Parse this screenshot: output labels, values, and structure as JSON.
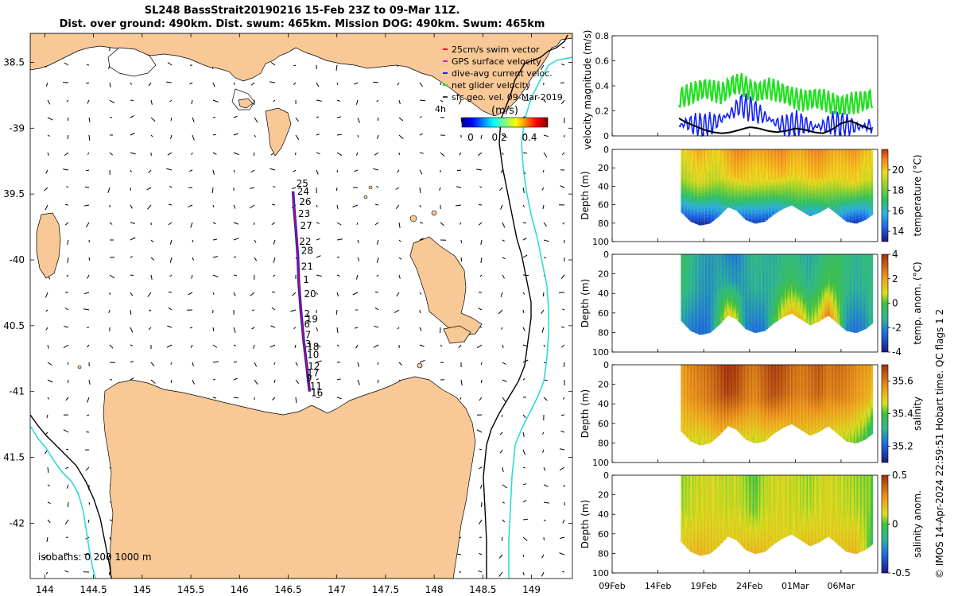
{
  "header": {
    "title_line1": "SL248 BassStrait20190216 15-Feb 23Z to 09-Mar 11Z.",
    "title_line2": "Dist. over ground: 490km. Dist. swum: 465km. Mission DOG: 490km. Swum: 465km"
  },
  "colors": {
    "land": "#f8c896",
    "track": "#1020ff",
    "swim_vector": "#ff0000",
    "gps_velocity": "#d020d0",
    "glider_velocity": "#20e020",
    "isobath_200": "#000000",
    "isobath_1000": "#30d8d8"
  },
  "chart_data": [
    {
      "type": "scatter",
      "title": "Glider track map",
      "xlim": [
        143.85,
        149.42
      ],
      "ylim": [
        -42.42,
        -38.28
      ],
      "xticks": [
        144,
        144.5,
        145,
        145.5,
        146,
        146.5,
        147,
        147.5,
        148,
        148.5,
        149
      ],
      "xtick_labels": [
        "144",
        "144.5",
        "145",
        "145.5",
        "146",
        "146.5",
        "147",
        "147.5",
        "148",
        "148.5",
        "149"
      ],
      "yticks": [
        -38.5,
        -39,
        -39.5,
        -40,
        -40.5,
        -41,
        -41.5,
        -42
      ],
      "ytick_labels": [
        "38.5",
        "-39",
        "39.5",
        "-40",
        "40.5",
        "-41",
        "41.5",
        "-42"
      ],
      "legend": {
        "entries": [
          "25cm/s swim vector",
          "GPS surface velocity",
          "dive-avg current veloc.",
          "net glider velocity",
          "sfc geo. vel. 09-Mar-2019"
        ],
        "position": "top-right",
        "time_label": "4h"
      },
      "colorbar": {
        "label": "(m/s)",
        "ticks": [
          "0",
          "0.2",
          "0.4"
        ],
        "range": [
          0,
          0.5
        ]
      },
      "isobaths_label": "isobaths: 0   200  1000 m",
      "track": [
        {
          "lon": 146.72,
          "lat": -41.0
        },
        {
          "lon": 146.69,
          "lat": -40.8
        },
        {
          "lon": 146.66,
          "lat": -40.62
        },
        {
          "lon": 146.63,
          "lat": -40.38
        },
        {
          "lon": 146.61,
          "lat": -40.18
        },
        {
          "lon": 146.6,
          "lat": -39.98
        },
        {
          "lon": 146.58,
          "lat": -39.78
        },
        {
          "lon": 146.56,
          "lat": -39.6
        },
        {
          "lon": 146.55,
          "lat": -39.48
        }
      ],
      "day_labels": [
        {
          "text": "25",
          "lon": 146.55,
          "lat": -39.42
        },
        {
          "text": "24",
          "lon": 146.56,
          "lat": -39.48
        },
        {
          "text": "26",
          "lon": 146.58,
          "lat": -39.56
        },
        {
          "text": "23",
          "lon": 146.57,
          "lat": -39.65
        },
        {
          "text": "27",
          "lon": 146.59,
          "lat": -39.74
        },
        {
          "text": "22",
          "lon": 146.58,
          "lat": -39.86
        },
        {
          "text": "28",
          "lon": 146.6,
          "lat": -39.93
        },
        {
          "text": "21",
          "lon": 146.6,
          "lat": -40.05
        },
        {
          "text": "1",
          "lon": 146.62,
          "lat": -40.15
        },
        {
          "text": "20",
          "lon": 146.63,
          "lat": -40.26
        },
        {
          "text": "2",
          "lon": 146.63,
          "lat": -40.41
        },
        {
          "text": "19",
          "lon": 146.65,
          "lat": -40.45
        },
        {
          "text": "6",
          "lon": 146.63,
          "lat": -40.49
        },
        {
          "text": "7",
          "lon": 146.64,
          "lat": -40.57
        },
        {
          "text": "3",
          "lon": 146.64,
          "lat": -40.64
        },
        {
          "text": "18",
          "lon": 146.66,
          "lat": -40.66
        },
        {
          "text": "10",
          "lon": 146.66,
          "lat": -40.72
        },
        {
          "text": "12",
          "lon": 146.67,
          "lat": -40.81
        },
        {
          "text": "17",
          "lon": 146.66,
          "lat": -40.86
        },
        {
          "text": "9",
          "lon": 146.65,
          "lat": -40.9
        },
        {
          "text": "11",
          "lon": 146.69,
          "lat": -40.96
        },
        {
          "text": "16",
          "lon": 146.7,
          "lat": -41.01
        }
      ]
    },
    {
      "type": "line",
      "ylabel": "velocity magnitude (m/s)",
      "ylim": [
        0,
        0.8
      ],
      "yticks": [
        0,
        0.2,
        0.4,
        0.6,
        0.8
      ],
      "ytick_labels": [
        "0",
        "0.2",
        "0.4",
        "0.6",
        "0.8"
      ],
      "xlim_days": [
        0,
        29
      ],
      "series": [
        {
          "name": "net glider velocity",
          "color": "#20e020",
          "x": [
            7.3,
            8,
            9,
            10,
            11,
            12,
            13,
            14,
            15,
            16,
            17,
            18,
            19,
            20,
            21,
            22,
            23,
            24,
            25,
            26,
            27,
            28,
            28.5
          ],
          "y": [
            0.3,
            0.32,
            0.35,
            0.38,
            0.36,
            0.34,
            0.4,
            0.42,
            0.37,
            0.35,
            0.38,
            0.36,
            0.33,
            0.3,
            0.28,
            0.3,
            0.29,
            0.26,
            0.24,
            0.26,
            0.27,
            0.29,
            0.3
          ]
        },
        {
          "name": "dive-avg current veloc.",
          "color": "#1020ff",
          "x": [
            7.3,
            8,
            9,
            10,
            11,
            12,
            13,
            14,
            15,
            16,
            17,
            18,
            19,
            20,
            21,
            22,
            23,
            24,
            25,
            26,
            27,
            28,
            28.5
          ],
          "y": [
            0.08,
            0.1,
            0.09,
            0.08,
            0.1,
            0.14,
            0.18,
            0.25,
            0.22,
            0.18,
            0.14,
            0.1,
            0.08,
            0.1,
            0.09,
            0.07,
            0.08,
            0.1,
            0.09,
            0.08,
            0.07,
            0.08,
            0.09
          ]
        },
        {
          "name": "sfc geo. vel.",
          "color": "#000000",
          "x": [
            7.3,
            8,
            9,
            10,
            11,
            12,
            13,
            14,
            15,
            16,
            17,
            18,
            19,
            20,
            21,
            22,
            23,
            24,
            25,
            26,
            27,
            28,
            28.5
          ],
          "y": [
            0.14,
            0.11,
            0.08,
            0.05,
            0.03,
            0.02,
            0.03,
            0.05,
            0.07,
            0.06,
            0.04,
            0.03,
            0.04,
            0.06,
            0.05,
            0.03,
            0.02,
            0.05,
            0.1,
            0.12,
            0.09,
            0.06,
            0.05
          ]
        }
      ]
    },
    {
      "type": "heatmap",
      "variable": "temperature",
      "ylabel": "Depth (m)",
      "yticks": [
        0,
        20,
        40,
        60,
        80,
        100
      ],
      "ytick_labels": [
        "0",
        "20",
        "40",
        "60",
        "80",
        "100"
      ],
      "ylim": [
        100,
        0
      ],
      "colorbar": {
        "label": "temperature (°C)",
        "ticks": [
          "14",
          "16",
          "18",
          "20"
        ],
        "range": [
          13,
          22
        ]
      },
      "profile_x": [
        7.5,
        8.5,
        9.5,
        10.5,
        11.5,
        12.5,
        13.5,
        14.5,
        15.5,
        16.5,
        17.5,
        18.5,
        19.5,
        20.5,
        21.5,
        22.5,
        23.5,
        24.5,
        25.5,
        26.5,
        27.5,
        28.3
      ],
      "bottom_depth": [
        68,
        78,
        82,
        80,
        72,
        62,
        66,
        76,
        80,
        78,
        70,
        64,
        60,
        66,
        72,
        68,
        62,
        70,
        78,
        80,
        76,
        70
      ],
      "surface_values": [
        19.5,
        20,
        20.5,
        20,
        19.8,
        20.5,
        21,
        20.8,
        20.5,
        20.6,
        20.8,
        21,
        20.5,
        20.4,
        20.8,
        21,
        20.6,
        20.4,
        20.6,
        20.8,
        20.2,
        20
      ],
      "bottom_values": [
        15,
        14,
        13.5,
        13.8,
        15,
        16.5,
        16,
        14.5,
        14,
        14.2,
        15,
        16,
        16.8,
        16.5,
        15.5,
        16,
        17,
        16,
        14.5,
        13.8,
        14.5,
        16
      ]
    },
    {
      "type": "heatmap",
      "variable": "temp. anom.",
      "ylabel": "Depth (m)",
      "yticks": [
        0,
        20,
        40,
        60,
        80,
        100
      ],
      "ytick_labels": [
        "0",
        "20",
        "40",
        "60",
        "80",
        "100"
      ],
      "ylim": [
        100,
        0
      ],
      "colorbar": {
        "label": "temp. anom. (°C)",
        "ticks": [
          "-4",
          "-2",
          "0",
          "2",
          "4"
        ],
        "range": [
          -4,
          4
        ]
      },
      "profile_x": [
        7.5,
        8.5,
        9.5,
        10.5,
        11.5,
        12.5,
        13.5,
        14.5,
        15.5,
        16.5,
        17.5,
        18.5,
        19.5,
        20.5,
        21.5,
        22.5,
        23.5,
        24.5,
        25.5,
        26.5,
        27.5,
        28.3
      ],
      "bottom_depth": [
        68,
        78,
        82,
        80,
        72,
        62,
        66,
        76,
        80,
        78,
        70,
        64,
        60,
        66,
        72,
        68,
        62,
        70,
        78,
        80,
        76,
        70
      ],
      "surface_values": [
        -0.5,
        -1,
        -1.5,
        -1.8,
        -1.6,
        -2,
        -2.2,
        -1.5,
        -1,
        -1.2,
        -1.4,
        -1,
        -0.8,
        -1.2,
        -1.5,
        -1,
        -0.6,
        -0.5,
        -0.8,
        -1.2,
        -1,
        -0.8
      ],
      "bottom_values": [
        -1.5,
        -2.2,
        -2.5,
        -2.3,
        -0.5,
        1.2,
        0.8,
        -2,
        -2.4,
        -2.2,
        -0.5,
        1,
        1.5,
        1.5,
        0.5,
        1,
        2.5,
        1,
        -2,
        -2.4,
        -2,
        -1
      ]
    },
    {
      "type": "heatmap",
      "variable": "salinity",
      "ylabel": "Depth (m)",
      "yticks": [
        0,
        20,
        40,
        60,
        80,
        100
      ],
      "ytick_labels": [
        "0",
        "20",
        "40",
        "60",
        "80",
        "100"
      ],
      "ylim": [
        100,
        0
      ],
      "colorbar": {
        "label": "salinity",
        "ticks": [
          "35.2",
          "35.4",
          "35.6"
        ],
        "range": [
          35.1,
          35.7
        ]
      },
      "profile_x": [
        7.5,
        8.5,
        9.5,
        10.5,
        11.5,
        12.5,
        13.5,
        14.5,
        15.5,
        16.5,
        17.5,
        18.5,
        19.5,
        20.5,
        21.5,
        22.5,
        23.5,
        24.5,
        25.5,
        26.5,
        27.5,
        28.3
      ],
      "bottom_depth": [
        68,
        78,
        82,
        80,
        72,
        62,
        66,
        76,
        80,
        78,
        70,
        64,
        60,
        66,
        72,
        68,
        62,
        70,
        78,
        80,
        76,
        70
      ],
      "surface_values": [
        35.55,
        35.58,
        35.6,
        35.62,
        35.65,
        35.7,
        35.68,
        35.62,
        35.6,
        35.64,
        35.68,
        35.66,
        35.62,
        35.6,
        35.62,
        35.65,
        35.6,
        35.62,
        35.6,
        35.58,
        35.56,
        35.55
      ],
      "bottom_values": [
        35.5,
        35.48,
        35.46,
        35.48,
        35.52,
        35.55,
        35.52,
        35.48,
        35.46,
        35.48,
        35.5,
        35.52,
        35.54,
        35.52,
        35.5,
        35.5,
        35.52,
        35.48,
        35.45,
        35.42,
        35.4,
        35.35
      ]
    },
    {
      "type": "heatmap",
      "variable": "salinity anom.",
      "ylabel": "Depth (m)",
      "yticks": [
        0,
        20,
        40,
        60,
        80,
        100
      ],
      "ytick_labels": [
        "0",
        "20",
        "40",
        "60",
        "80",
        "100"
      ],
      "ylim": [
        100,
        0
      ],
      "colorbar": {
        "label": "salinity anom.",
        "ticks": [
          "-0.5",
          "0",
          "0.5"
        ],
        "range": [
          -0.5,
          0.5
        ]
      },
      "xticks_days": [
        0,
        5,
        10,
        15,
        20,
        25
      ],
      "xtick_labels": [
        "09Feb",
        "14Feb",
        "19Feb",
        "24Feb",
        "01Mar",
        "06Mar"
      ],
      "profile_x": [
        7.5,
        8.5,
        9.5,
        10.5,
        11.5,
        12.5,
        13.5,
        14.5,
        15.5,
        16.5,
        17.5,
        18.5,
        19.5,
        20.5,
        21.5,
        22.5,
        23.5,
        24.5,
        25.5,
        26.5,
        27.5,
        28.3
      ],
      "bottom_depth": [
        68,
        78,
        82,
        80,
        72,
        62,
        66,
        76,
        80,
        78,
        70,
        64,
        60,
        66,
        72,
        68,
        62,
        70,
        78,
        80,
        76,
        70
      ],
      "surface_values": [
        0.05,
        0.08,
        0.1,
        0.12,
        0.1,
        0.08,
        0.1,
        0.05,
        0.0,
        0.08,
        0.1,
        0.12,
        0.1,
        0.08,
        0.06,
        0.1,
        0.12,
        0.1,
        0.08,
        0.06,
        0.05,
        0.05
      ],
      "bottom_values": [
        0.15,
        0.18,
        0.2,
        0.18,
        0.16,
        0.14,
        0.15,
        0.18,
        0.2,
        0.18,
        0.15,
        0.14,
        0.12,
        0.15,
        0.18,
        0.16,
        0.14,
        0.16,
        0.18,
        0.2,
        0.1,
        -0.05
      ]
    }
  ],
  "footer": {
    "credit": "© IMOS 14-Apr-2024 22:59:51 Hobart time. QC flags 1  2"
  }
}
